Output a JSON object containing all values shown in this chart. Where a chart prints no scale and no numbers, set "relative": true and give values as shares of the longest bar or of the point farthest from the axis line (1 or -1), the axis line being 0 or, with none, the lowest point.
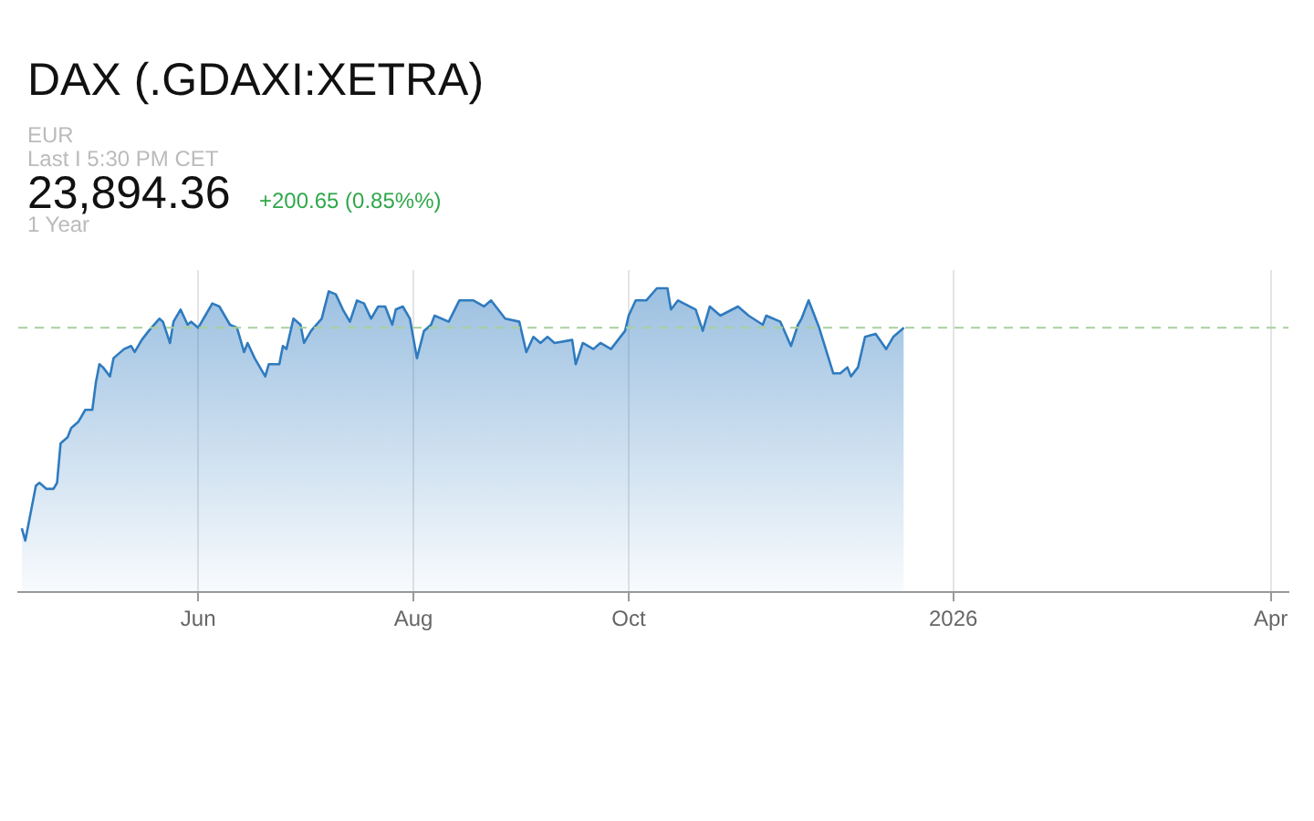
{
  "chart_data": {
    "type": "area",
    "title": "DAX (.GDAXI:XETRA)",
    "annotations": [
      "EUR",
      "Last I 5:30 PM CET",
      "23,894.36",
      "+200.65 (0.85%%)",
      "1 Year"
    ],
    "relative": true,
    "grid": "x",
    "legend": false,
    "marker": "none",
    "xlim": [
      "2025-04-11",
      "2026-04-06"
    ],
    "xticks": [
      {
        "value": "2025-06-01",
        "label": "Jun"
      },
      {
        "value": "2025-08-01",
        "label": "Aug"
      },
      {
        "value": "2025-10-01",
        "label": "Oct"
      },
      {
        "value": "2026-01-01",
        "label": "2026"
      },
      {
        "value": "2026-04-01",
        "label": "Apr"
      }
    ],
    "ref_lines": [
      {
        "axis": "y",
        "value": 0.87,
        "label": null,
        "color": "#a8cf9c",
        "line_style": "dashed"
      }
    ],
    "series": [
      {
        "color": "#2f7bbf",
        "x": [
          "2025-04-12",
          "2025-04-13",
          "2025-04-15",
          "2025-04-16",
          "2025-04-17",
          "2025-04-19",
          "2025-04-21",
          "2025-04-22",
          "2025-04-23",
          "2025-04-25",
          "2025-04-26",
          "2025-04-28",
          "2025-04-30",
          "2025-05-02",
          "2025-05-03",
          "2025-05-04",
          "2025-05-05",
          "2025-05-07",
          "2025-05-08",
          "2025-05-11",
          "2025-05-13",
          "2025-05-14",
          "2025-05-16",
          "2025-05-18",
          "2025-05-21",
          "2025-05-22",
          "2025-05-24",
          "2025-05-25",
          "2025-05-27",
          "2025-05-29",
          "2025-05-30",
          "2025-06-01",
          "2025-06-03",
          "2025-06-05",
          "2025-06-07",
          "2025-06-10",
          "2025-06-12",
          "2025-06-14",
          "2025-06-15",
          "2025-06-17",
          "2025-06-20",
          "2025-06-21",
          "2025-06-24",
          "2025-06-25",
          "2025-06-26",
          "2025-06-28",
          "2025-06-30",
          "2025-07-01",
          "2025-07-03",
          "2025-07-06",
          "2025-07-08",
          "2025-07-10",
          "2025-07-12",
          "2025-07-14",
          "2025-07-16",
          "2025-07-18",
          "2025-07-20",
          "2025-07-22",
          "2025-07-24",
          "2025-07-26",
          "2025-07-27",
          "2025-07-29",
          "2025-07-31",
          "2025-08-02",
          "2025-08-04",
          "2025-08-06",
          "2025-08-07",
          "2025-08-11",
          "2025-08-14",
          "2025-08-18",
          "2025-08-21",
          "2025-08-23",
          "2025-08-27",
          "2025-08-31",
          "2025-09-02",
          "2025-09-04",
          "2025-09-06",
          "2025-09-08",
          "2025-09-10",
          "2025-09-15",
          "2025-09-16",
          "2025-09-18",
          "2025-09-21",
          "2025-09-23",
          "2025-09-26",
          "2025-09-30",
          "2025-10-01",
          "2025-10-03",
          "2025-10-06",
          "2025-10-09",
          "2025-10-12",
          "2025-10-13",
          "2025-10-15",
          "2025-10-20",
          "2025-10-22",
          "2025-10-24",
          "2025-10-27",
          "2025-11-01",
          "2025-11-04",
          "2025-11-08",
          "2025-11-09",
          "2025-11-13",
          "2025-11-16",
          "2025-11-18",
          "2025-11-19",
          "2025-11-21",
          "2025-11-24",
          "2025-11-28",
          "2025-11-30",
          "2025-12-02",
          "2025-12-03",
          "2025-12-05",
          "2025-12-07",
          "2025-12-10",
          "2025-12-13",
          "2025-12-15",
          "2025-12-18"
        ],
        "values": [
          0.21,
          0.17,
          0.29,
          0.35,
          0.36,
          0.34,
          0.34,
          0.36,
          0.49,
          0.51,
          0.54,
          0.56,
          0.6,
          0.6,
          0.69,
          0.75,
          0.74,
          0.71,
          0.77,
          0.8,
          0.81,
          0.79,
          0.83,
          0.86,
          0.9,
          0.89,
          0.82,
          0.89,
          0.93,
          0.88,
          0.89,
          0.87,
          0.91,
          0.95,
          0.94,
          0.88,
          0.87,
          0.79,
          0.82,
          0.77,
          0.71,
          0.75,
          0.75,
          0.81,
          0.8,
          0.9,
          0.88,
          0.82,
          0.86,
          0.9,
          0.99,
          0.98,
          0.93,
          0.89,
          0.96,
          0.95,
          0.9,
          0.94,
          0.94,
          0.88,
          0.93,
          0.94,
          0.9,
          0.77,
          0.86,
          0.88,
          0.91,
          0.89,
          0.96,
          0.96,
          0.94,
          0.96,
          0.9,
          0.89,
          0.79,
          0.84,
          0.82,
          0.84,
          0.82,
          0.83,
          0.75,
          0.82,
          0.8,
          0.82,
          0.8,
          0.86,
          0.91,
          0.96,
          0.96,
          1,
          1,
          0.93,
          0.96,
          0.93,
          0.86,
          0.94,
          0.91,
          0.94,
          0.91,
          0.88,
          0.91,
          0.89,
          0.81,
          0.88,
          0.9,
          0.96,
          0.87,
          0.72,
          0.72,
          0.74,
          0.71,
          0.74,
          0.84,
          0.85,
          0.8,
          0.84,
          0.87
        ]
      }
    ]
  }
}
